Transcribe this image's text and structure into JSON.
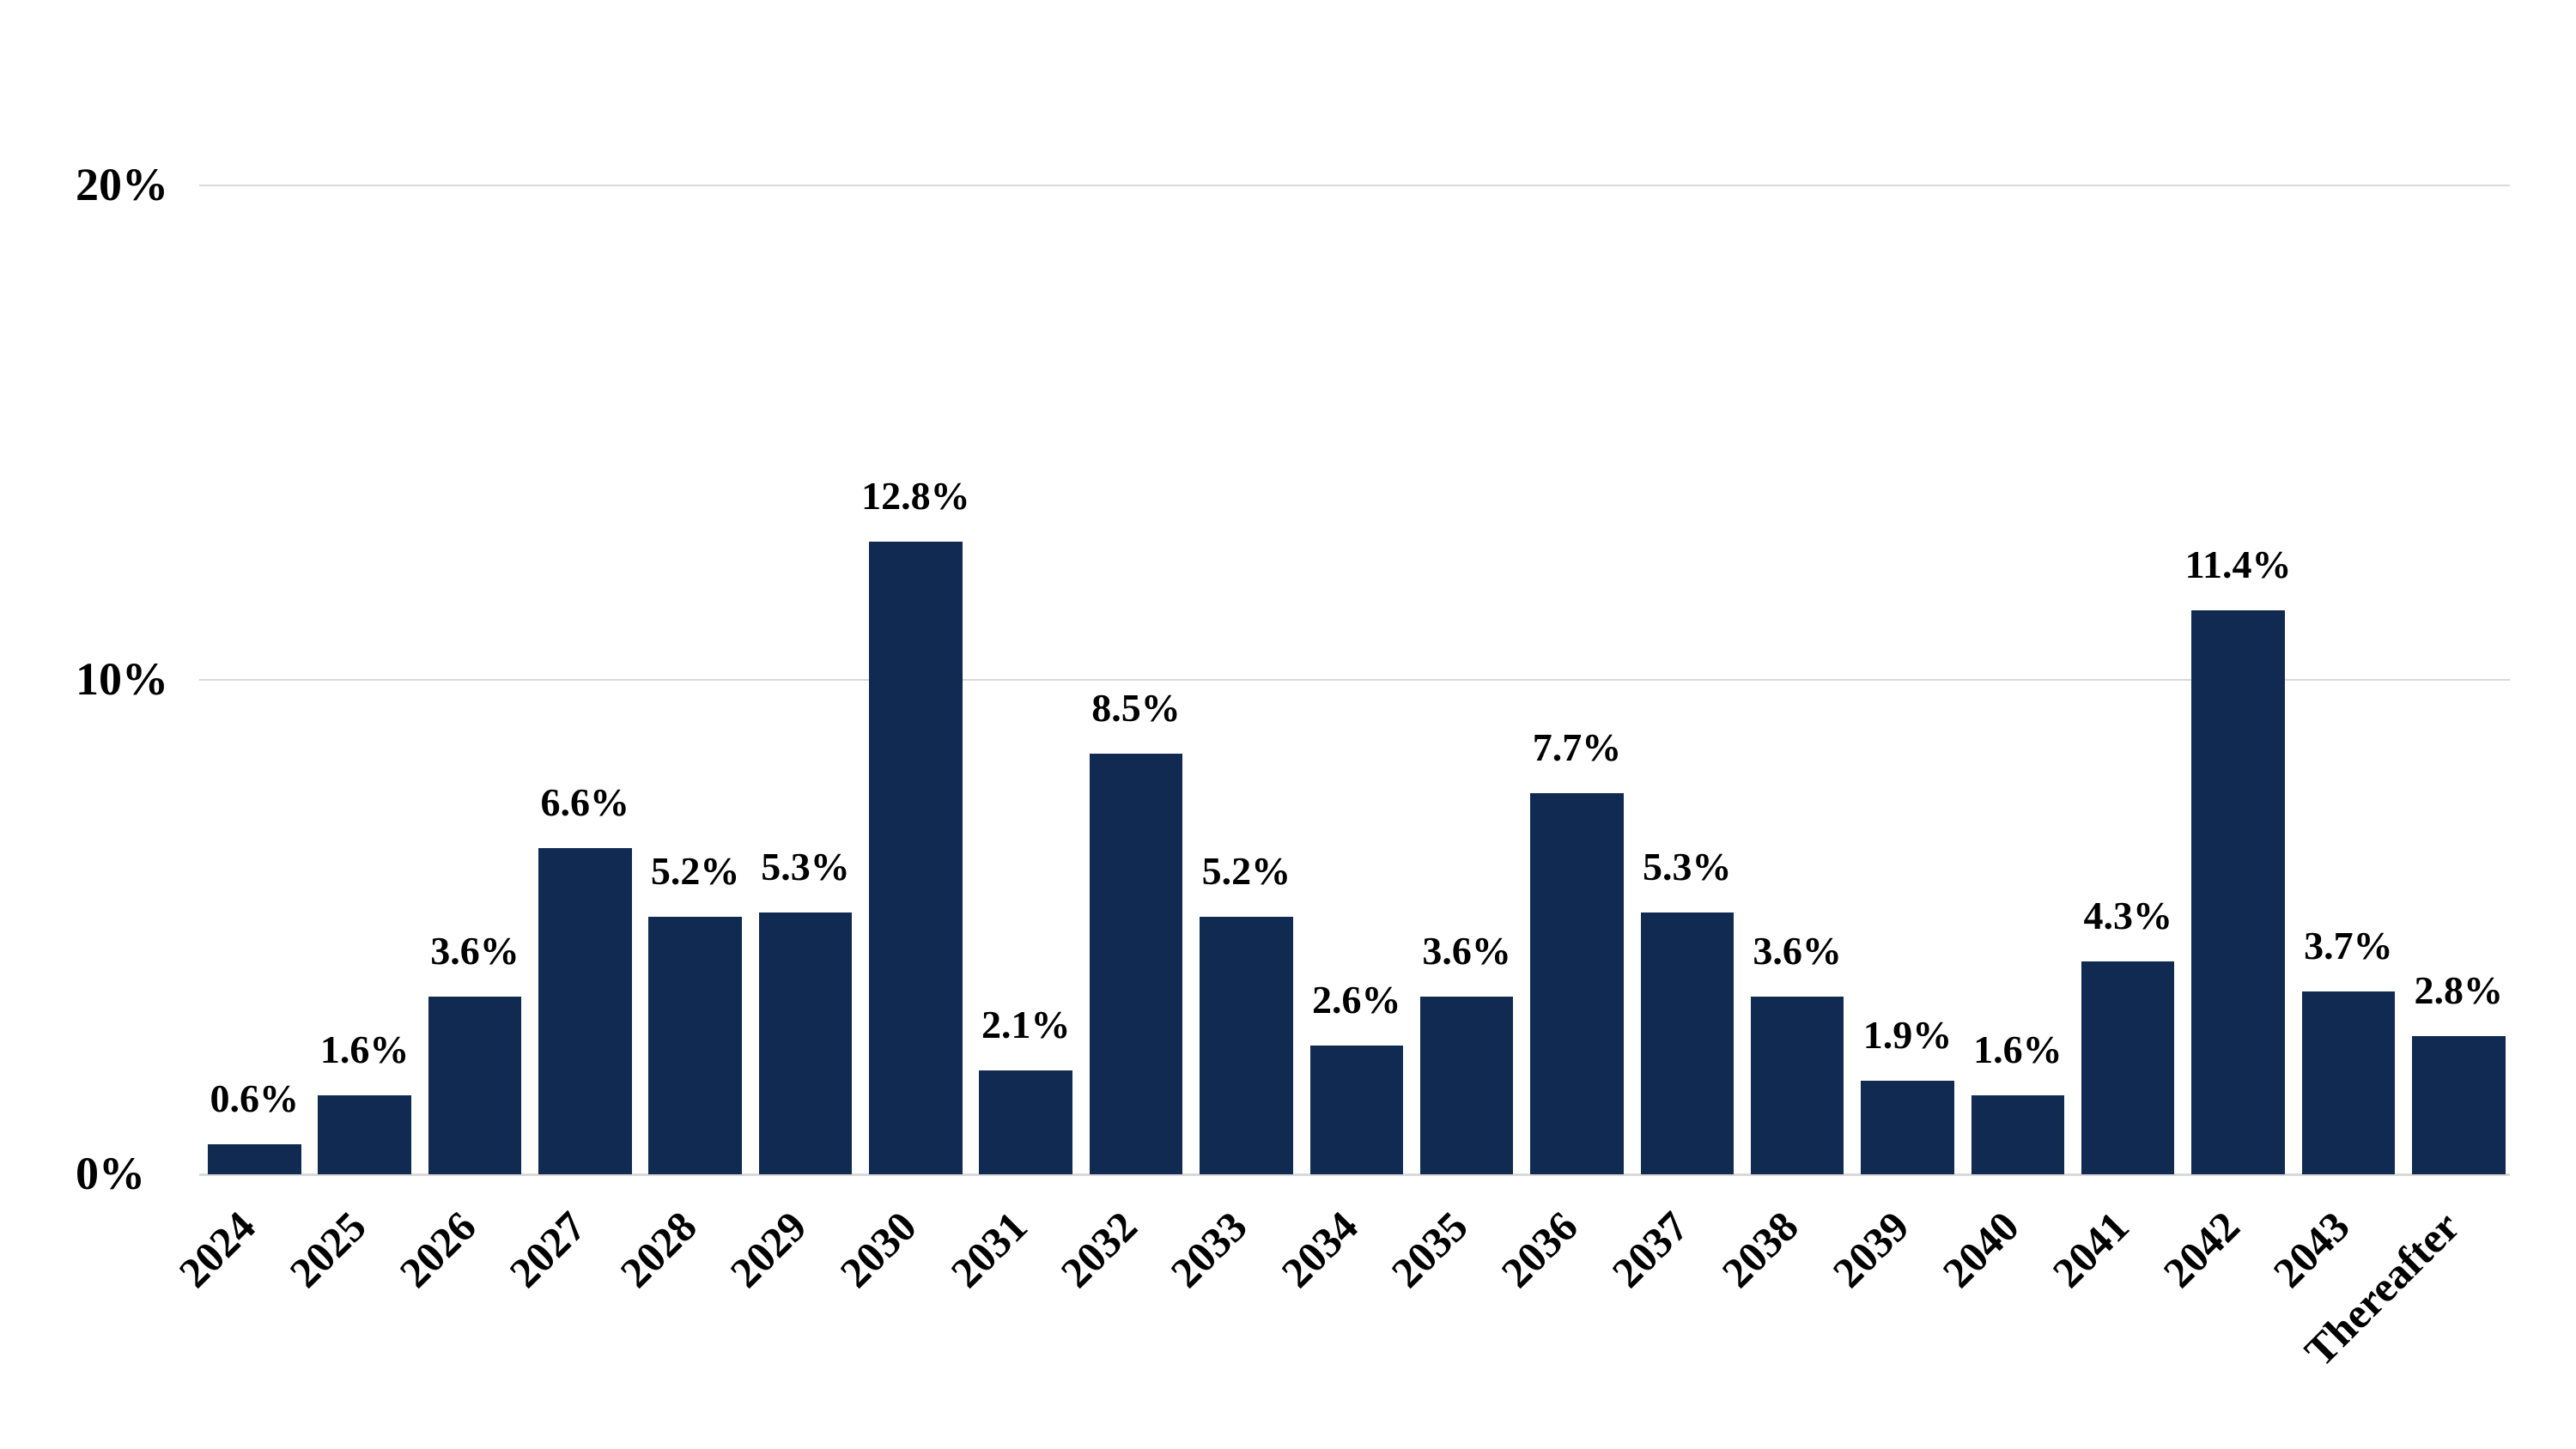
{
  "chart_data": {
    "type": "bar",
    "title": "",
    "xlabel": "",
    "ylabel": "",
    "categories": [
      "2024",
      "2025",
      "2026",
      "2027",
      "2028",
      "2029",
      "2030",
      "2031",
      "2032",
      "2033",
      "2034",
      "2035",
      "2036",
      "2037",
      "2038",
      "2039",
      "2040",
      "2041",
      "2042",
      "2043",
      "Thereafter"
    ],
    "values": [
      0.6,
      1.6,
      3.6,
      6.6,
      5.2,
      5.3,
      12.8,
      2.1,
      8.5,
      5.2,
      2.6,
      3.6,
      7.7,
      5.3,
      3.6,
      1.9,
      1.6,
      4.3,
      11.4,
      3.7,
      2.8
    ],
    "value_labels": [
      "0.6%",
      "1.6%",
      "3.6%",
      "6.6%",
      "5.2%",
      "5.3%",
      "12.8%",
      "2.1%",
      "8.5%",
      "5.2%",
      "2.6%",
      "3.6%",
      "7.7%",
      "5.3%",
      "3.6%",
      "1.9%",
      "1.6%",
      "4.3%",
      "11.4%",
      "3.7%",
      "2.8%"
    ],
    "ylim": [
      0,
      20
    ],
    "yticks": [
      {
        "value": 0,
        "label": "0%"
      },
      {
        "value": 10,
        "label": "10%"
      },
      {
        "value": 20,
        "label": "20%"
      }
    ],
    "grid": true,
    "legend": null,
    "colors": {
      "bar": "#102A52",
      "gridline": "#d9d9d9",
      "axis_line": "#d9d9d9",
      "text": "#000000",
      "background": "#ffffff"
    }
  }
}
